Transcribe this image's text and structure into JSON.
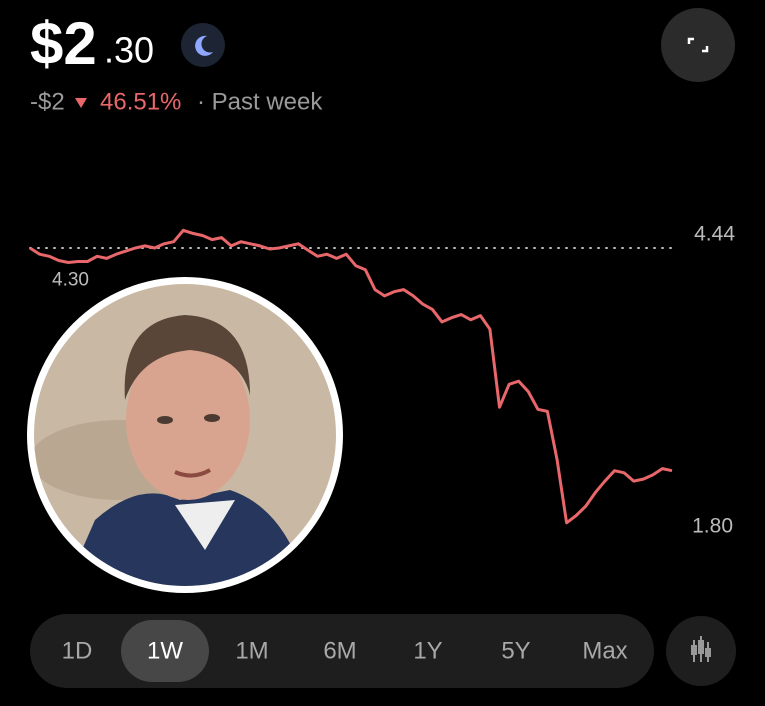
{
  "header": {
    "price_whole": "$2",
    "price_cents": ".30",
    "change": "-$2",
    "change_percent": "46.51%",
    "period": "· Past week"
  },
  "chart_data": {
    "type": "line",
    "color": "#e8676b",
    "values": [
      4.44,
      4.38,
      4.36,
      4.32,
      4.3,
      4.31,
      4.31,
      4.36,
      4.34,
      4.38,
      4.41,
      4.44,
      4.46,
      4.44,
      4.48,
      4.5,
      4.61,
      4.58,
      4.56,
      4.52,
      4.54,
      4.46,
      4.5,
      4.48,
      4.46,
      4.43,
      4.44,
      4.46,
      4.48,
      4.42,
      4.36,
      4.38,
      4.34,
      4.38,
      4.27,
      4.23,
      4.04,
      3.98,
      4.02,
      4.04,
      3.98,
      3.9,
      3.85,
      3.73,
      3.77,
      3.8,
      3.75,
      3.79,
      3.66,
      2.91,
      3.13,
      3.16,
      3.06,
      2.89,
      2.87,
      2.41,
      1.8,
      1.87,
      1.96,
      2.09,
      2.2,
      2.3,
      2.28,
      2.2,
      2.22,
      2.26,
      2.32,
      2.3
    ],
    "ylim": [
      1.5,
      4.8
    ],
    "annotations": [
      {
        "value": 4.44,
        "label": "4.44"
      },
      {
        "value": 4.3,
        "label": "4.30"
      },
      {
        "value": 1.8,
        "label": "1.80"
      }
    ]
  },
  "ranges": {
    "items": [
      "1D",
      "1W",
      "1M",
      "6M",
      "1Y",
      "5Y",
      "Max"
    ],
    "selected": 1
  }
}
